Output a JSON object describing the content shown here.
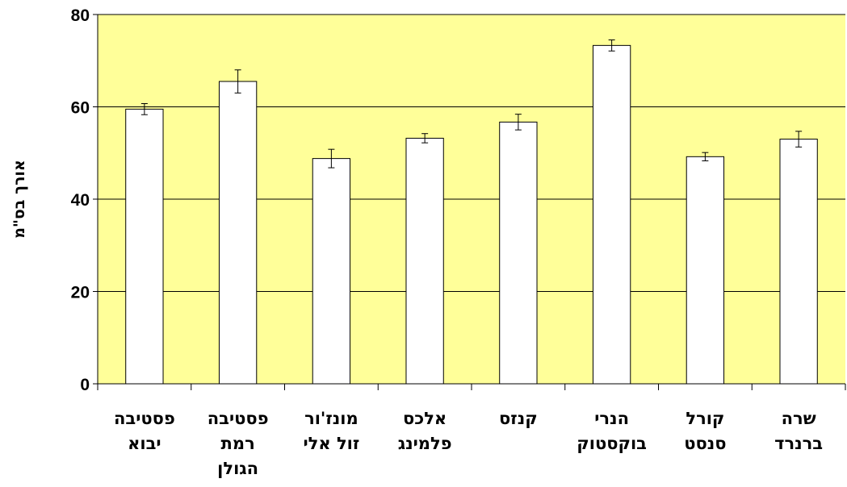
{
  "chart_data": {
    "type": "bar",
    "title": "",
    "xlabel": "",
    "ylabel": "אורך בס\"מ",
    "ylim": [
      0,
      80
    ],
    "yticks": [
      0,
      20,
      40,
      60,
      80
    ],
    "grid": true,
    "categories": [
      [
        "פסטיבה",
        "יבוא"
      ],
      [
        "פסטיבה",
        "רמת",
        "הגולן"
      ],
      [
        "מונז'ור",
        "זול אלי"
      ],
      [
        "אלכס",
        "פלמינג"
      ],
      [
        "קנזס"
      ],
      [
        "הנרי",
        "בוקסטוק"
      ],
      [
        "קורל",
        "סנסט"
      ],
      [
        "שרה",
        "ברנרד"
      ]
    ],
    "values": [
      59.5,
      65.5,
      48.8,
      53.2,
      56.7,
      73.3,
      49.2,
      53.0
    ],
    "errors": [
      1.2,
      2.5,
      2.0,
      1.0,
      1.7,
      1.2,
      0.9,
      1.7
    ],
    "colors": {
      "plot_background": "#ffff99",
      "bar_fill": "#ffffff",
      "bar_stroke": "#000000",
      "grid": "#000000"
    }
  }
}
